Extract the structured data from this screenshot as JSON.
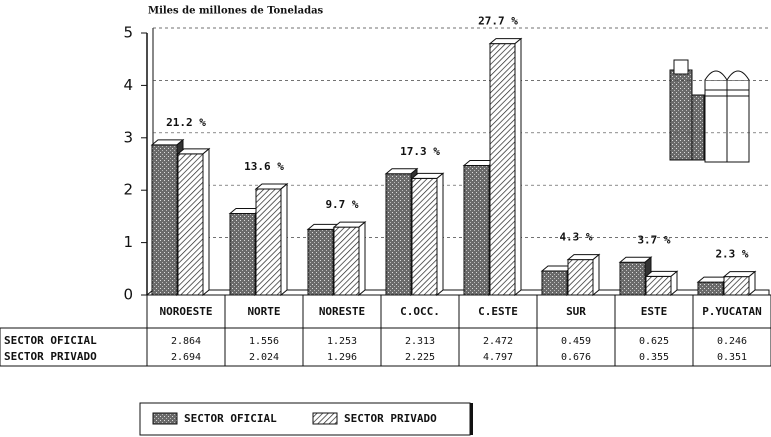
{
  "chart_data": {
    "type": "bar3d",
    "title": "Miles de millones de Toneladas",
    "categories": [
      "NOROESTE",
      "NORTE",
      "NORESTE",
      "C.OCC.",
      "C.ESTE",
      "SUR",
      "ESTE",
      "P.YUCATAN"
    ],
    "series": [
      {
        "name": "SECTOR OFICIAL",
        "color": "#555555",
        "values": [
          2.864,
          1.556,
          1.253,
          2.313,
          2.472,
          0.459,
          0.625,
          0.246
        ]
      },
      {
        "name": "SECTOR PRIVADO",
        "color": "#ffffff",
        "values": [
          2.694,
          2.024,
          1.296,
          2.225,
          4.797,
          0.676,
          0.355,
          0.351
        ]
      }
    ],
    "annotations": [
      "21.2 %",
      "13.6 %",
      "9.7 %",
      "17.3 %",
      "27.7 %",
      "4.3 %",
      "3.7 %",
      "2.3 %"
    ],
    "ylim": [
      0,
      5
    ],
    "yticks": [
      0,
      1,
      2,
      3,
      4,
      5
    ],
    "grid": true
  }
}
